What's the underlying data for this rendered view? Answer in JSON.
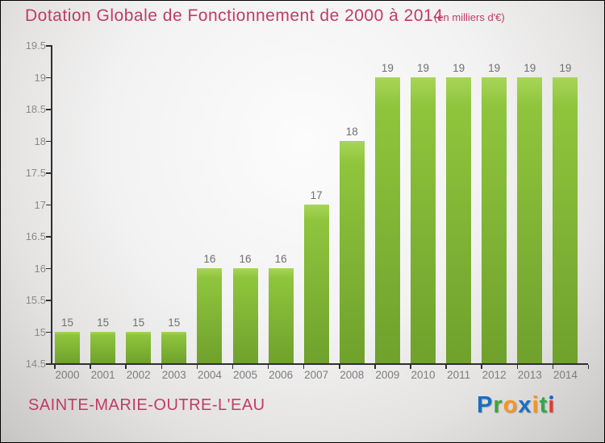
{
  "title": "Dotation Globale de Fonctionnement de 2000 à 2014",
  "subtitle": "(en milliers d'€)",
  "footer": {
    "location": "SAINTE-MARIE-OUTRE-L'EAU"
  },
  "logo": {
    "text": "Proxiti",
    "letters": [
      {
        "ch": "P",
        "color": "#1a6fbf"
      },
      {
        "ch": "r",
        "color": "#3fa43d"
      },
      {
        "ch": "o",
        "color": "#f7941d"
      },
      {
        "ch": "x",
        "color": "#1a6fbf"
      },
      {
        "ch": "i",
        "color": "#f7941d"
      },
      {
        "ch": "t",
        "color": "#33a64c"
      },
      {
        "ch": "i",
        "color": "#e23b33",
        "dot_color": "#1a6fbf"
      }
    ]
  },
  "colors": {
    "title_text": "#c23a67",
    "bar_top": "#a8d558",
    "bar_bottom": "#6fa12c",
    "axis": "#2f2f2f",
    "y_label": "#8a8a8a",
    "value_label": "#6f6f6f",
    "x_label": "#7d7d7d"
  },
  "chart_data": {
    "type": "bar",
    "title": "Dotation Globale de Fonctionnement de 2000 à 2014",
    "subtitle": "(en milliers d'€)",
    "categories": [
      "2000",
      "2001",
      "2002",
      "2003",
      "2004",
      "2005",
      "2006",
      "2007",
      "2008",
      "2009",
      "2010",
      "2011",
      "2012",
      "2013",
      "2014"
    ],
    "values": [
      15,
      15,
      15,
      15,
      16,
      16,
      16,
      17,
      18,
      19,
      19,
      19,
      19,
      19,
      19
    ],
    "value_labels": [
      "15",
      "15",
      "15",
      "15",
      "16",
      "16",
      "16",
      "17",
      "18",
      "19",
      "19",
      "19",
      "19",
      "19",
      "19"
    ],
    "xlabel": "",
    "ylabel": "",
    "ylim": [
      14.5,
      19.5
    ],
    "y_tick_step": 0.5,
    "y_ticks": [
      "19.5",
      "19",
      "18.5",
      "18",
      "17.5",
      "17",
      "16.5",
      "16",
      "15.5",
      "15",
      "14.5"
    ],
    "grid": false,
    "legend": false,
    "bar_labels_shown": true
  }
}
